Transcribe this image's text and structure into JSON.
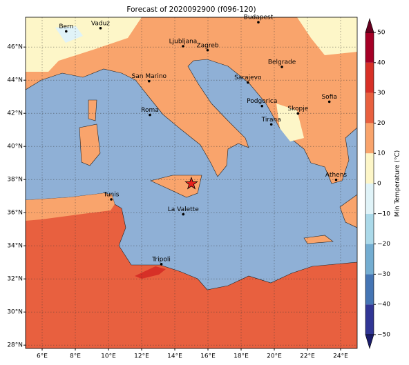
{
  "title": "Forecast of 2020092900 (f096-120)",
  "xlim": [
    5,
    25
  ],
  "ylim": [
    27.8,
    47.8
  ],
  "x_ticks": [
    {
      "value": 6,
      "label": "6°E"
    },
    {
      "value": 8,
      "label": "8°E"
    },
    {
      "value": 10,
      "label": "10°E"
    },
    {
      "value": 12,
      "label": "12°E"
    },
    {
      "value": 14,
      "label": "14°E"
    },
    {
      "value": 16,
      "label": "16°E"
    },
    {
      "value": 18,
      "label": "18°E"
    },
    {
      "value": 20,
      "label": "20°E"
    },
    {
      "value": 22,
      "label": "22°E"
    },
    {
      "value": 24,
      "label": "24°E"
    }
  ],
  "y_ticks": [
    {
      "value": 28,
      "label": "28°N"
    },
    {
      "value": 30,
      "label": "30°N"
    },
    {
      "value": 32,
      "label": "32°N"
    },
    {
      "value": 34,
      "label": "34°N"
    },
    {
      "value": 36,
      "label": "36°N"
    },
    {
      "value": 38,
      "label": "38°N"
    },
    {
      "value": 40,
      "label": "40°N"
    },
    {
      "value": 42,
      "label": "42°N"
    },
    {
      "value": 44,
      "label": "44°N"
    },
    {
      "value": 46,
      "label": "46°N"
    }
  ],
  "grid": true,
  "colorbar": {
    "label": "Min Temperature (°C)",
    "ticks": [
      {
        "value": -50,
        "label": "−50"
      },
      {
        "value": -40,
        "label": "−40"
      },
      {
        "value": -30,
        "label": "−30"
      },
      {
        "value": -20,
        "label": "−20"
      },
      {
        "value": -10,
        "label": "−10"
      },
      0,
      10,
      20,
      30,
      40,
      50
    ],
    "colors": [
      "#313695",
      "#4575b4",
      "#74add1",
      "#abd9e9",
      "#e0f3f8",
      "#fdf6c8",
      "#f9a46c",
      "#e8603f",
      "#d73027",
      "#a50026"
    ],
    "under_color": "#1b1c6b",
    "over_color": "#67001f"
  },
  "cities": [
    {
      "name": "Bern",
      "lon": 7.45,
      "lat": 46.95
    },
    {
      "name": "Vaduz",
      "lon": 9.52,
      "lat": 47.14
    },
    {
      "name": "Budapest",
      "lon": 19.04,
      "lat": 47.5
    },
    {
      "name": "Ljubljana",
      "lon": 14.5,
      "lat": 46.05
    },
    {
      "name": "Zagreb",
      "lon": 15.98,
      "lat": 45.81
    },
    {
      "name": "Belgrade",
      "lon": 20.46,
      "lat": 44.8
    },
    {
      "name": "San Marino",
      "lon": 12.45,
      "lat": 43.94
    },
    {
      "name": "Sarajevo",
      "lon": 18.41,
      "lat": 43.86
    },
    {
      "name": "Roma",
      "lon": 12.5,
      "lat": 41.9
    },
    {
      "name": "Podgorica",
      "lon": 19.26,
      "lat": 42.44
    },
    {
      "name": "Skopje",
      "lon": 21.43,
      "lat": 41.99
    },
    {
      "name": "Sofia",
      "lon": 23.32,
      "lat": 42.7
    },
    {
      "name": "Tirana",
      "lon": 19.82,
      "lat": 41.33
    },
    {
      "name": "Athens",
      "lon": 23.73,
      "lat": 37.98
    },
    {
      "name": "Tunis",
      "lon": 10.17,
      "lat": 36.8
    },
    {
      "name": "La Valette",
      "lon": 14.51,
      "lat": 35.9
    },
    {
      "name": "Tripoli",
      "lon": 13.19,
      "lat": 32.89
    }
  ],
  "marker": {
    "lon": 15.0,
    "lat": 37.75,
    "color": "#e8201c"
  }
}
